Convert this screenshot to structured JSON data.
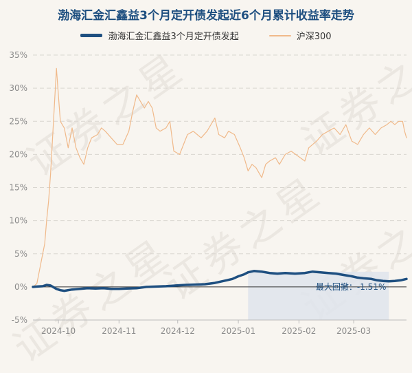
{
  "colors": {
    "fund": "#1e4f80",
    "index": "#f0b98a",
    "drawdown_fill": "#dfe4ec",
    "grid": "#d9d6d0",
    "axis_text": "#8a8a8a",
    "zero_line": "#333333",
    "title": "#1e4f80"
  },
  "watermark_text": "证券之星",
  "chart_data": {
    "type": "line",
    "title": "渤海汇金汇鑫益3个月定开债发起近6个月累计收益率走势",
    "xlabel": "",
    "ylabel": "",
    "ylim": [
      -5,
      35
    ],
    "y_ticks": [
      -5,
      0,
      5,
      10,
      15,
      20,
      25,
      30,
      35
    ],
    "y_tick_labels": [
      "-5%",
      "0%",
      "5%",
      "10%",
      "15%",
      "20%",
      "25%",
      "30%",
      "35%"
    ],
    "x_range": [
      "2024-09-18",
      "2025-03-28"
    ],
    "x_ticks": [
      "2024-10-01",
      "2024-11-01",
      "2024-12-01",
      "2025-01-01",
      "2025-02-01",
      "2025-03-01"
    ],
    "x_tick_labels": [
      "2024-10",
      "2024-11",
      "2024-12",
      "2025-01",
      "2025-02",
      "2025-03"
    ],
    "grid": true,
    "legend_position": "top-center",
    "drawdown_label": "最大回撤：-1.51%",
    "drawdown_range": [
      "2025-01-06",
      "2025-03-19"
    ],
    "series": [
      {
        "name": "渤海汇金汇鑫益3个月定开债发起",
        "points": [
          [
            "2024-09-18",
            0
          ],
          [
            "2024-09-20",
            0.05
          ],
          [
            "2024-09-23",
            0.1
          ],
          [
            "2024-09-25",
            0.3
          ],
          [
            "2024-09-27",
            0.2
          ],
          [
            "2024-09-30",
            -0.3
          ],
          [
            "2024-10-02",
            -0.5
          ],
          [
            "2024-10-04",
            -0.6
          ],
          [
            "2024-10-08",
            -0.4
          ],
          [
            "2024-10-12",
            -0.3
          ],
          [
            "2024-10-16",
            -0.2
          ],
          [
            "2024-10-20",
            -0.25
          ],
          [
            "2024-10-24",
            -0.2
          ],
          [
            "2024-10-28",
            -0.3
          ],
          [
            "2024-11-01",
            -0.3
          ],
          [
            "2024-11-05",
            -0.25
          ],
          [
            "2024-11-10",
            -0.2
          ],
          [
            "2024-11-15",
            0
          ],
          [
            "2024-11-20",
            0.05
          ],
          [
            "2024-11-25",
            0.1
          ],
          [
            "2024-11-30",
            0.2
          ],
          [
            "2024-12-05",
            0.3
          ],
          [
            "2024-12-10",
            0.35
          ],
          [
            "2024-12-15",
            0.4
          ],
          [
            "2024-12-20",
            0.6
          ],
          [
            "2024-12-23",
            0.8
          ],
          [
            "2024-12-26",
            1
          ],
          [
            "2024-12-29",
            1.2
          ],
          [
            "2025-01-01",
            1.6
          ],
          [
            "2025-01-04",
            1.9
          ],
          [
            "2025-01-06",
            2.2
          ],
          [
            "2025-01-09",
            2.4
          ],
          [
            "2025-01-13",
            2.3
          ],
          [
            "2025-01-17",
            2.1
          ],
          [
            "2025-01-21",
            2.0
          ],
          [
            "2025-01-25",
            2.1
          ],
          [
            "2025-01-30",
            2.0
          ],
          [
            "2025-02-04",
            2.1
          ],
          [
            "2025-02-08",
            2.3
          ],
          [
            "2025-02-12",
            2.2
          ],
          [
            "2025-02-16",
            2.1
          ],
          [
            "2025-02-20",
            2.0
          ],
          [
            "2025-02-24",
            1.8
          ],
          [
            "2025-02-28",
            1.6
          ],
          [
            "2025-03-03",
            1.4
          ],
          [
            "2025-03-06",
            1.3
          ],
          [
            "2025-03-10",
            1.2
          ],
          [
            "2025-03-13",
            1.0
          ],
          [
            "2025-03-16",
            0.9
          ],
          [
            "2025-03-19",
            0.85
          ],
          [
            "2025-03-22",
            0.9
          ],
          [
            "2025-03-25",
            1.0
          ],
          [
            "2025-03-28",
            1.2
          ]
        ]
      },
      {
        "name": "沪深300",
        "points": [
          [
            "2024-09-18",
            0
          ],
          [
            "2024-09-20",
            0.5
          ],
          [
            "2024-09-23",
            5
          ],
          [
            "2024-09-24",
            6.5
          ],
          [
            "2024-09-25",
            10
          ],
          [
            "2024-09-26",
            13
          ],
          [
            "2024-09-27",
            17
          ],
          [
            "2024-09-30",
            33
          ],
          [
            "2024-10-01",
            29
          ],
          [
            "2024-10-02",
            25
          ],
          [
            "2024-10-04",
            24
          ],
          [
            "2024-10-06",
            21
          ],
          [
            "2024-10-08",
            24
          ],
          [
            "2024-10-10",
            21
          ],
          [
            "2024-10-12",
            19.5
          ],
          [
            "2024-10-14",
            18.5
          ],
          [
            "2024-10-16",
            21
          ],
          [
            "2024-10-18",
            22.5
          ],
          [
            "2024-10-21",
            23
          ],
          [
            "2024-10-23",
            24
          ],
          [
            "2024-10-25",
            23.5
          ],
          [
            "2024-10-28",
            22.5
          ],
          [
            "2024-10-31",
            21.5
          ],
          [
            "2024-11-03",
            21.5
          ],
          [
            "2024-11-06",
            23.5
          ],
          [
            "2024-11-08",
            26.5
          ],
          [
            "2024-11-10",
            29
          ],
          [
            "2024-11-12",
            28
          ],
          [
            "2024-11-14",
            27
          ],
          [
            "2024-11-16",
            28
          ],
          [
            "2024-11-18",
            27
          ],
          [
            "2024-11-20",
            24
          ],
          [
            "2024-11-22",
            23.5
          ],
          [
            "2024-11-25",
            24
          ],
          [
            "2024-11-27",
            25
          ],
          [
            "2024-11-29",
            20.5
          ],
          [
            "2024-12-02",
            20
          ],
          [
            "2024-12-04",
            21.5
          ],
          [
            "2024-12-06",
            23
          ],
          [
            "2024-12-09",
            23.5
          ],
          [
            "2024-12-11",
            23
          ],
          [
            "2024-12-13",
            22.5
          ],
          [
            "2024-12-16",
            23.5
          ],
          [
            "2024-12-18",
            24.5
          ],
          [
            "2024-12-20",
            25.5
          ],
          [
            "2024-12-22",
            23
          ],
          [
            "2024-12-25",
            22.5
          ],
          [
            "2024-12-27",
            23.5
          ],
          [
            "2024-12-30",
            23
          ],
          [
            "2025-01-02",
            21
          ],
          [
            "2025-01-04",
            19.5
          ],
          [
            "2025-01-06",
            17.5
          ],
          [
            "2025-01-08",
            18.5
          ],
          [
            "2025-01-10",
            18
          ],
          [
            "2025-01-13",
            16.5
          ],
          [
            "2025-01-15",
            18.5
          ],
          [
            "2025-01-17",
            19
          ],
          [
            "2025-01-20",
            19.5
          ],
          [
            "2025-01-22",
            18.5
          ],
          [
            "2025-01-25",
            20
          ],
          [
            "2025-01-28",
            20.5
          ],
          [
            "2025-02-04",
            19
          ],
          [
            "2025-02-06",
            21
          ],
          [
            "2025-02-10",
            22
          ],
          [
            "2025-02-13",
            23
          ],
          [
            "2025-02-16",
            23.5
          ],
          [
            "2025-02-19",
            24
          ],
          [
            "2025-02-22",
            23
          ],
          [
            "2025-02-25",
            24.5
          ],
          [
            "2025-02-28",
            22
          ],
          [
            "2025-03-03",
            21.5
          ],
          [
            "2025-03-06",
            23
          ],
          [
            "2025-03-09",
            24
          ],
          [
            "2025-03-12",
            23
          ],
          [
            "2025-03-15",
            24
          ],
          [
            "2025-03-18",
            24.5
          ],
          [
            "2025-03-20",
            25
          ],
          [
            "2025-03-22",
            24.5
          ],
          [
            "2025-03-24",
            25
          ],
          [
            "2025-03-26",
            25
          ],
          [
            "2025-03-27",
            23.5
          ],
          [
            "2025-03-28",
            22.5
          ]
        ]
      }
    ]
  }
}
